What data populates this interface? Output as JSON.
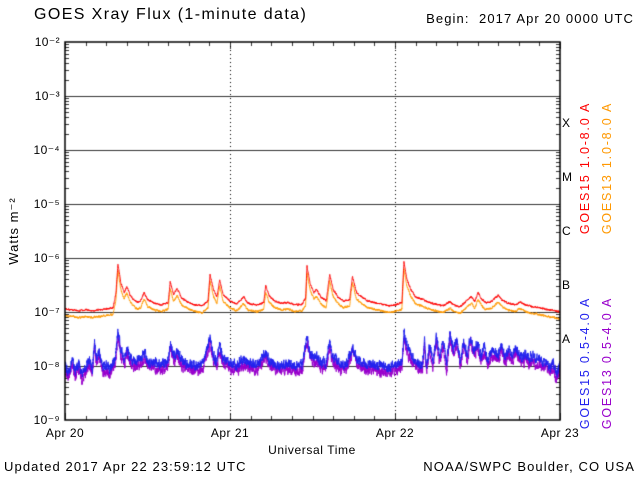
{
  "header": {
    "title": "GOES Xray Flux (1-minute data)",
    "begin_label": "Begin:  2017 Apr 20 0000 UTC"
  },
  "footer": {
    "updated": "Updated 2017 Apr 22 23:59:12 UTC",
    "source": "NOAA/SWPC Boulder, CO USA"
  },
  "axes": {
    "ylabel": "Watts m⁻²",
    "xlabel": "Universal Time",
    "y_tick_labels": [
      "10⁻²",
      "10⁻³",
      "10⁻⁴",
      "10⁻⁵",
      "10⁻⁶",
      "10⁻⁷",
      "10⁻⁸",
      "10⁻⁹"
    ],
    "x_tick_labels": [
      "Apr 20",
      "Apr 21",
      "Apr 22",
      "Apr 23"
    ],
    "flare_class_labels": [
      "X",
      "M",
      "C",
      "B",
      "A"
    ]
  },
  "legend": {
    "entries": [
      {
        "label": "GOES15 1.0-8.0 A",
        "color": "#fe0000"
      },
      {
        "label": "GOES13 1.0-8.0 A",
        "color": "#ff9800"
      },
      {
        "label": "GOES15 0.5-4.0 A",
        "color": "#2222ee"
      },
      {
        "label": "GOES13 0.5-4.0 A",
        "color": "#9900cc"
      }
    ]
  },
  "chart_data": {
    "type": "line",
    "title": "GOES Xray Flux (1-minute data)",
    "begin": "2017 Apr 20 0000 UTC",
    "updated": "2017 Apr 22 23:59:12 UTC",
    "xlabel": "Universal Time",
    "ylabel": "Watts m-2",
    "x_unit": "hours since 2017 Apr 20 00:00 UTC",
    "x_range": [
      0,
      72
    ],
    "x_tick_hours": [
      0,
      24,
      48,
      72
    ],
    "x_tick_labels": [
      "Apr 20",
      "Apr 21",
      "Apr 22",
      "Apr 23"
    ],
    "y_scale": "log10",
    "y_range": [
      1e-09,
      0.01
    ],
    "flare_class_bands": {
      "A": [
        1e-08,
        1e-07
      ],
      "B": [
        1e-07,
        1e-06
      ],
      "C": [
        1e-06,
        1e-05
      ],
      "M": [
        1e-05,
        0.0001
      ],
      "X": [
        0.0001,
        0.001
      ]
    },
    "grid": {
      "h_lines_exponents": [
        -3,
        -4,
        -5,
        -6,
        -7,
        -8
      ],
      "v_dashed_hours": [
        24,
        48
      ]
    },
    "series": [
      {
        "name": "GOES15 1.0-8.0 A",
        "color": "#fe0000",
        "noise_sigma": 0.03,
        "anchors": [
          [
            0,
            1.15e-07
          ],
          [
            1,
            1.1e-07
          ],
          [
            2,
            1.05e-07
          ],
          [
            3,
            1.1e-07
          ],
          [
            4,
            1.05e-07
          ],
          [
            5,
            1.1e-07
          ],
          [
            6,
            1.15e-07
          ],
          [
            7,
            1.2e-07
          ],
          [
            7.4,
            2.2e-07
          ],
          [
            7.7,
            8e-07
          ],
          [
            8.1,
            3.6e-07
          ],
          [
            8.6,
            2.3e-07
          ],
          [
            9.0,
            3e-07
          ],
          [
            9.5,
            2e-07
          ],
          [
            10,
            1.7e-07
          ],
          [
            10.5,
            1.5e-07
          ],
          [
            11,
            1.6e-07
          ],
          [
            11.5,
            2.3e-07
          ],
          [
            12,
            1.7e-07
          ],
          [
            13,
            1.45e-07
          ],
          [
            14,
            1.35e-07
          ],
          [
            15,
            1.5e-07
          ],
          [
            15.3,
            3.6e-07
          ],
          [
            15.8,
            2.1e-07
          ],
          [
            16.3,
            2.7e-07
          ],
          [
            17,
            1.8e-07
          ],
          [
            18,
            1.5e-07
          ],
          [
            19,
            1.35e-07
          ],
          [
            20,
            1.3e-07
          ],
          [
            20.8,
            1.6e-07
          ],
          [
            21.1,
            5e-07
          ],
          [
            21.6,
            2.6e-07
          ],
          [
            22.1,
            1.9e-07
          ],
          [
            22.5,
            4e-07
          ],
          [
            23,
            2.1e-07
          ],
          [
            24,
            1.6e-07
          ],
          [
            25,
            1.4e-07
          ],
          [
            26,
            1.9e-07
          ],
          [
            26.5,
            1.5e-07
          ],
          [
            27,
            1.4e-07
          ],
          [
            28,
            1.35e-07
          ],
          [
            28.9,
            1.5e-07
          ],
          [
            29.2,
            3.1e-07
          ],
          [
            29.7,
            2e-07
          ],
          [
            30.5,
            1.6e-07
          ],
          [
            31.5,
            1.45e-07
          ],
          [
            32.5,
            1.5e-07
          ],
          [
            33.5,
            1.35e-07
          ],
          [
            34.5,
            1.4e-07
          ],
          [
            35.0,
            1.8e-07
          ],
          [
            35.2,
            7e-07
          ],
          [
            35.7,
            3.2e-07
          ],
          [
            36.2,
            2.3e-07
          ],
          [
            36.6,
            2.6e-07
          ],
          [
            37.2,
            1.9e-07
          ],
          [
            38,
            1.6e-07
          ],
          [
            38.5,
            5e-07
          ],
          [
            39,
            2.6e-07
          ],
          [
            39.7,
            1.9e-07
          ],
          [
            40.5,
            1.6e-07
          ],
          [
            41.4,
            1.7e-07
          ],
          [
            41.8,
            4.6e-07
          ],
          [
            42.4,
            2.3e-07
          ],
          [
            43.2,
            1.9e-07
          ],
          [
            44,
            1.6e-07
          ],
          [
            45,
            1.5e-07
          ],
          [
            46,
            1.4e-07
          ],
          [
            47,
            1.3e-07
          ],
          [
            48,
            1.35e-07
          ],
          [
            49,
            1.5e-07
          ],
          [
            49.3,
            8.5e-07
          ],
          [
            49.7,
            4.2e-07
          ],
          [
            50.3,
            2.6e-07
          ],
          [
            51,
            1.9e-07
          ],
          [
            52,
            1.7e-07
          ],
          [
            53,
            1.5e-07
          ],
          [
            54,
            1.4e-07
          ],
          [
            55,
            1.3e-07
          ],
          [
            56,
            1.55e-07
          ],
          [
            56.6,
            1.35e-07
          ],
          [
            57.5,
            1.25e-07
          ],
          [
            58.5,
            1.65e-07
          ],
          [
            59.1,
            1.95e-07
          ],
          [
            59.6,
            1.55e-07
          ],
          [
            60.1,
            2.3e-07
          ],
          [
            60.6,
            1.75e-07
          ],
          [
            61.2,
            1.5e-07
          ],
          [
            62,
            1.55e-07
          ],
          [
            63,
            2.05e-07
          ],
          [
            63.6,
            1.65e-07
          ],
          [
            64.5,
            1.45e-07
          ],
          [
            65.5,
            1.35e-07
          ],
          [
            66.2,
            1.55e-07
          ],
          [
            67,
            1.35e-07
          ],
          [
            68,
            1.25e-07
          ],
          [
            69,
            1.2e-07
          ],
          [
            70,
            1.12e-07
          ],
          [
            71,
            1.06e-07
          ],
          [
            72,
            1e-07
          ]
        ]
      },
      {
        "name": "GOES13 1.0-8.0 A",
        "color": "#ff9800",
        "noise_sigma": 0.035,
        "anchors_ref": 0,
        "scale": 0.75
      },
      {
        "name": "GOES15 0.5-4.0 A",
        "color": "#2222ee",
        "noise_sigma": 0.15,
        "anchors": [
          [
            0,
            1e-08
          ],
          [
            0.5,
            7.5e-09
          ],
          [
            1,
            1.3e-08
          ],
          [
            1.5,
            8e-09
          ],
          [
            2,
            1.15e-08
          ],
          [
            2.5,
            7e-09
          ],
          [
            3,
            9.5e-09
          ],
          [
            3.5,
            1.3e-08
          ],
          [
            4,
            9e-09
          ],
          [
            4.3,
            3.2e-08
          ],
          [
            4.6,
            1.3e-08
          ],
          [
            5,
            2e-08
          ],
          [
            5.5,
            9.5e-09
          ],
          [
            6,
            1.05e-08
          ],
          [
            6.5,
            8.5e-09
          ],
          [
            7,
            1.1e-08
          ],
          [
            7.4,
            1.6e-08
          ],
          [
            7.7,
            4.5e-08
          ],
          [
            8.1,
            2.1e-08
          ],
          [
            8.6,
            1.35e-08
          ],
          [
            9,
            2.2e-08
          ],
          [
            9.5,
            1.4e-08
          ],
          [
            10,
            1.25e-08
          ],
          [
            11,
            1.3e-08
          ],
          [
            11.5,
            1.8e-08
          ],
          [
            12,
            1.25e-08
          ],
          [
            13,
            1.15e-08
          ],
          [
            14,
            1.05e-08
          ],
          [
            15,
            1.25e-08
          ],
          [
            15.3,
            2.7e-08
          ],
          [
            15.9,
            1.45e-08
          ],
          [
            16.3,
            1.85e-08
          ],
          [
            17,
            1.25e-08
          ],
          [
            18,
            1.1e-08
          ],
          [
            19,
            1.05e-08
          ],
          [
            20,
            1.1e-08
          ],
          [
            21.1,
            3.4e-08
          ],
          [
            21.6,
            1.5e-08
          ],
          [
            22.1,
            1.2e-08
          ],
          [
            22.5,
            2.5e-08
          ],
          [
            23,
            1.35e-08
          ],
          [
            24,
            1.15e-08
          ],
          [
            25,
            1.05e-08
          ],
          [
            26,
            1.35e-08
          ],
          [
            27,
            1.1e-08
          ],
          [
            28,
            1.05e-08
          ],
          [
            29.2,
            1.85e-08
          ],
          [
            29.7,
            1.25e-08
          ],
          [
            30.5,
            1.1e-08
          ],
          [
            31.5,
            1.05e-08
          ],
          [
            32.5,
            1.1e-08
          ],
          [
            33.5,
            1e-08
          ],
          [
            34.5,
            1.05e-08
          ],
          [
            35.2,
            3.6e-08
          ],
          [
            35.7,
            1.7e-08
          ],
          [
            36.2,
            1.35e-08
          ],
          [
            36.6,
            1.55e-08
          ],
          [
            37.2,
            1.2e-08
          ],
          [
            38,
            1.1e-08
          ],
          [
            38.5,
            2.7e-08
          ],
          [
            39,
            1.45e-08
          ],
          [
            40,
            1.15e-08
          ],
          [
            41,
            1.1e-08
          ],
          [
            41.8,
            2.3e-08
          ],
          [
            42.5,
            1.3e-08
          ],
          [
            43.2,
            1.2e-08
          ],
          [
            44,
            1.1e-08
          ],
          [
            45,
            1.05e-08
          ],
          [
            46,
            1e-08
          ],
          [
            47,
            9.5e-09
          ],
          [
            48,
            1.05e-08
          ],
          [
            49,
            1.15e-08
          ],
          [
            49.3,
            4.2e-08
          ],
          [
            49.8,
            2.2e-08
          ],
          [
            50.5,
            1.45e-08
          ],
          [
            51,
            1.25e-08
          ],
          [
            51.5,
            1.1e-08
          ],
          [
            52,
            1.05e-08
          ],
          [
            52.3,
            3e-08
          ],
          [
            52.6,
            9.5e-09
          ],
          [
            53,
            2.5e-08
          ],
          [
            53.5,
            1.2e-08
          ],
          [
            54,
            3.5e-08
          ],
          [
            54.5,
            1.5e-08
          ],
          [
            55,
            3e-08
          ],
          [
            55.5,
            1.05e-08
          ],
          [
            56,
            4e-08
          ],
          [
            56.5,
            2e-08
          ],
          [
            57,
            3.2e-08
          ],
          [
            57.5,
            1.25e-08
          ],
          [
            58,
            2.8e-08
          ],
          [
            58.5,
            1.5e-08
          ],
          [
            59,
            3.5e-08
          ],
          [
            59.5,
            2e-08
          ],
          [
            60,
            2.6e-08
          ],
          [
            60.5,
            1.5e-08
          ],
          [
            61,
            2.3e-08
          ],
          [
            61.5,
            1.25e-08
          ],
          [
            62,
            1.9e-08
          ],
          [
            63,
            1.6e-08
          ],
          [
            63.5,
            2.4e-08
          ],
          [
            64,
            1.45e-08
          ],
          [
            64.5,
            2e-08
          ],
          [
            65,
            1.6e-08
          ],
          [
            65.5,
            2.2e-08
          ],
          [
            66,
            1.8e-08
          ],
          [
            66.5,
            1.4e-08
          ],
          [
            67,
            1.7e-08
          ],
          [
            67.5,
            1.35e-08
          ],
          [
            68,
            1.55e-08
          ],
          [
            68.5,
            1.25e-08
          ],
          [
            69,
            1.45e-08
          ],
          [
            69.5,
            1.15e-08
          ],
          [
            70,
            1.25e-08
          ],
          [
            70.5,
            9.5e-09
          ],
          [
            71,
            1.15e-08
          ],
          [
            71.5,
            7e-09
          ],
          [
            72,
            1.05e-08
          ]
        ]
      },
      {
        "name": "GOES13 0.5-4.0 A",
        "color": "#9900cc",
        "noise_sigma": 0.17,
        "anchors_ref": 2,
        "scale": 0.8
      }
    ]
  }
}
